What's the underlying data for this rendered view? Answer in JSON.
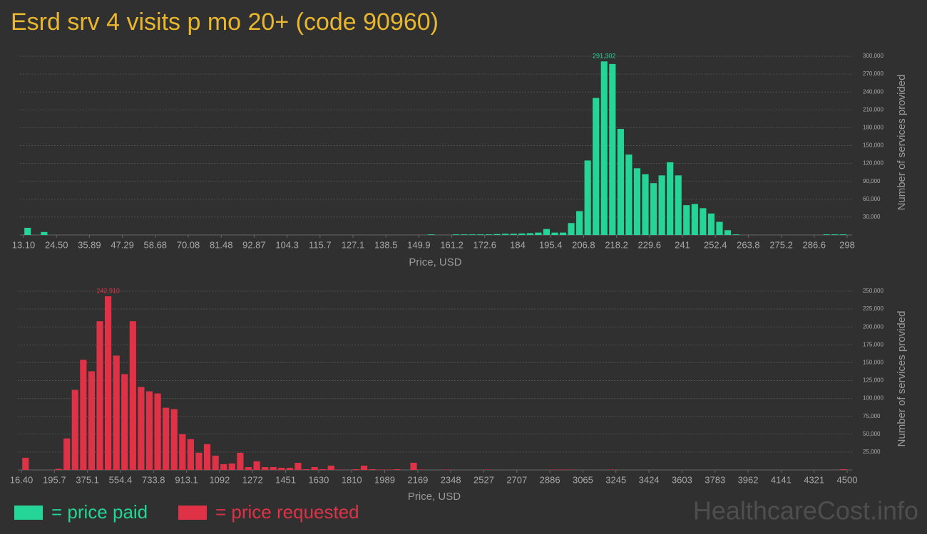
{
  "title": "Esrd srv 4 visits p mo 20+ (code 90960)",
  "watermark": "HealthcareCost.info",
  "chart_data": [
    {
      "type": "histogram",
      "x_label": "Price, USD",
      "y_label": "Number of services provided",
      "grid": true,
      "xlim": [
        13.1,
        298
      ],
      "ylim": [
        0,
        300000
      ],
      "xticks": [
        {
          "value": 13.1,
          "label": "13.10"
        },
        {
          "value": 24.5,
          "label": "24.50"
        },
        35.89,
        47.29,
        58.68,
        70.08,
        81.48,
        92.87,
        {
          "value": 104.27,
          "label": "104.3"
        },
        {
          "value": 115.66,
          "label": "115.7"
        },
        {
          "value": 127.06,
          "label": "127.1"
        },
        {
          "value": 138.46,
          "label": "138.5"
        },
        {
          "value": 149.85,
          "label": "149.9"
        },
        {
          "value": 161.25,
          "label": "161.2"
        },
        {
          "value": 172.64,
          "label": "172.6"
        },
        {
          "value": 184.04,
          "label": "184"
        },
        {
          "value": 195.44,
          "label": "195.4"
        },
        {
          "value": 206.83,
          "label": "206.8"
        },
        {
          "value": 218.23,
          "label": "218.2"
        },
        {
          "value": 229.62,
          "label": "229.6"
        },
        {
          "value": 241.02,
          "label": "241"
        },
        {
          "value": 252.42,
          "label": "252.4"
        },
        {
          "value": 263.81,
          "label": "263.8"
        },
        {
          "value": 275.21,
          "label": "275.2"
        },
        {
          "value": 286.6,
          "label": "286.6"
        },
        298
      ],
      "yticks": [
        {
          "value": 30000,
          "label": "30,000"
        },
        {
          "value": 60000,
          "label": "60,000"
        },
        {
          "value": 90000,
          "label": "90,000"
        },
        {
          "value": 120000,
          "label": "120,000"
        },
        {
          "value": 150000,
          "label": "150,000"
        },
        {
          "value": 180000,
          "label": "180,000"
        },
        {
          "value": 210000,
          "label": "210,000"
        },
        {
          "value": 240000,
          "label": "240,000"
        },
        {
          "value": 270000,
          "label": "270,000"
        },
        {
          "value": 300000,
          "label": "300,000"
        }
      ],
      "bins": [
        13.1,
        15.95,
        18.8,
        21.65,
        24.5,
        27.34,
        30.19,
        33.04,
        35.89,
        38.74,
        41.59,
        44.44,
        47.29,
        50.14,
        52.99,
        55.84,
        58.68,
        61.53,
        64.38,
        67.23,
        70.08,
        72.93,
        75.78,
        78.63,
        81.48,
        84.33,
        87.17,
        90.02,
        92.87,
        95.72,
        98.57,
        101.42,
        104.27,
        107.12,
        109.97,
        112.82,
        115.66,
        118.51,
        121.36,
        124.21,
        127.06,
        129.91,
        132.76,
        135.61,
        138.46,
        141.31,
        144.15,
        147.0,
        149.85,
        152.7,
        155.55,
        158.4,
        161.25,
        164.1,
        166.95,
        169.8,
        172.64,
        175.49,
        178.34,
        181.19,
        184.04,
        186.89,
        189.74,
        192.59,
        195.44,
        198.29,
        201.13,
        203.98,
        206.83,
        209.68,
        212.53,
        215.38,
        218.23,
        221.08,
        223.93,
        226.78,
        229.62,
        232.47,
        235.32,
        238.17,
        241.02,
        243.87,
        246.72,
        249.57,
        252.42,
        255.27,
        258.11,
        260.96,
        263.81,
        266.66,
        269.51,
        272.36,
        275.21,
        278.06,
        280.91,
        283.76,
        286.6,
        289.45,
        292.3,
        295.15,
        298
      ],
      "series": [
        {
          "name": "= price paid",
          "color": "#25d597",
          "values": [
            12000,
            0,
            5000,
            0,
            0,
            0,
            0,
            0,
            0,
            0,
            0,
            0,
            0,
            0,
            0,
            0,
            0,
            0,
            0,
            0,
            0,
            0,
            0,
            0,
            0,
            0,
            0,
            0,
            0,
            0,
            0,
            0,
            0,
            0,
            0,
            0,
            0,
            0,
            0,
            0,
            0,
            0,
            0,
            0,
            0,
            0,
            0,
            0,
            0,
            1000,
            0,
            0,
            1000,
            1000,
            1000,
            1000,
            1000,
            1500,
            2000,
            2000,
            2500,
            3000,
            4000,
            10000,
            4000,
            4000,
            20000,
            40000,
            125000,
            230000,
            291302,
            287000,
            178000,
            135000,
            112000,
            102000,
            87000,
            100000,
            122000,
            100000,
            50000,
            52000,
            45000,
            36000,
            22000,
            8000,
            1000,
            0,
            0,
            0,
            0,
            0,
            0,
            0,
            0,
            0,
            0,
            1000,
            1000,
            1000
          ],
          "value_labels": [
            null,
            null,
            null,
            null,
            null,
            null,
            null,
            null,
            null,
            null,
            null,
            null,
            null,
            null,
            null,
            null,
            null,
            null,
            null,
            null,
            null,
            null,
            null,
            null,
            null,
            null,
            null,
            null,
            null,
            null,
            null,
            null,
            null,
            null,
            null,
            null,
            null,
            null,
            null,
            null,
            null,
            null,
            null,
            null,
            null,
            null,
            null,
            null,
            null,
            null,
            null,
            null,
            null,
            null,
            null,
            null,
            null,
            null,
            null,
            null,
            null,
            null,
            null,
            null,
            null,
            null,
            null,
            null,
            null,
            null,
            "291,302",
            null,
            null,
            null,
            null,
            null,
            null,
            null,
            null,
            null,
            null,
            null,
            null,
            null,
            null,
            null,
            null,
            null,
            null,
            null,
            null,
            null,
            null,
            null,
            null,
            null,
            null,
            null,
            null,
            null
          ]
        }
      ]
    },
    {
      "type": "histogram",
      "x_label": "Price, USD",
      "y_label": "Number of services provided",
      "grid": true,
      "xlim": [
        16.4,
        4500
      ],
      "ylim": [
        0,
        250000
      ],
      "xticks": [
        {
          "value": 16.4,
          "label": "16.40"
        },
        {
          "value": 195.74,
          "label": "195.7"
        },
        {
          "value": 375.09,
          "label": "375.1"
        },
        {
          "value": 554.43,
          "label": "554.4"
        },
        {
          "value": 733.78,
          "label": "733.8"
        },
        {
          "value": 913.12,
          "label": "913.1"
        },
        {
          "value": 1092.46,
          "label": "1092"
        },
        {
          "value": 1271.81,
          "label": "1272"
        },
        {
          "value": 1451.15,
          "label": "1451"
        },
        {
          "value": 1630.5,
          "label": "1630"
        },
        {
          "value": 1809.84,
          "label": "1810"
        },
        {
          "value": 1989.18,
          "label": "1989"
        },
        {
          "value": 2168.53,
          "label": "2169"
        },
        {
          "value": 2347.87,
          "label": "2348"
        },
        {
          "value": 2527.22,
          "label": "2527"
        },
        {
          "value": 2706.56,
          "label": "2707"
        },
        {
          "value": 2885.9,
          "label": "2886"
        },
        {
          "value": 3065.25,
          "label": "3065"
        },
        {
          "value": 3244.59,
          "label": "3245"
        },
        {
          "value": 3423.94,
          "label": "3424"
        },
        {
          "value": 3603.28,
          "label": "3603"
        },
        {
          "value": 3782.62,
          "label": "3783"
        },
        {
          "value": 3961.97,
          "label": "3962"
        },
        {
          "value": 4141.31,
          "label": "4141"
        },
        {
          "value": 4320.66,
          "label": "4321"
        },
        4500
      ],
      "yticks": [
        {
          "value": 25000,
          "label": "25,000"
        },
        {
          "value": 50000,
          "label": "50,000"
        },
        {
          "value": 75000,
          "label": "75,000"
        },
        {
          "value": 100000,
          "label": "100,000"
        },
        {
          "value": 125000,
          "label": "125,000"
        },
        {
          "value": 150000,
          "label": "150,000"
        },
        {
          "value": 175000,
          "label": "175,000"
        },
        {
          "value": 200000,
          "label": "200,000"
        },
        {
          "value": 225000,
          "label": "225,000"
        },
        {
          "value": 250000,
          "label": "250,000"
        }
      ],
      "bins": [
        16.4,
        61.24,
        106.07,
        150.91,
        195.74,
        240.58,
        285.42,
        330.25,
        375.09,
        419.92,
        464.76,
        509.6,
        554.43,
        599.27,
        644.1,
        688.94,
        733.78,
        778.61,
        823.45,
        868.28,
        913.12,
        957.96,
        1002.79,
        1047.63,
        1092.46,
        1137.3,
        1182.14,
        1226.97,
        1271.81,
        1316.64,
        1361.48,
        1406.32,
        1451.15,
        1495.99,
        1540.82,
        1585.66,
        1630.5,
        1675.33,
        1720.17,
        1765,
        1809.84,
        1854.68,
        1899.51,
        1944.35,
        1989.18,
        2034.02,
        2078.86,
        2123.69,
        2168.53,
        2213.36,
        2258.2,
        2303.04,
        2347.87,
        2392.71,
        2437.54,
        2482.38,
        2527.22,
        2572.05,
        2616.89,
        2661.72,
        2706.56,
        2751.4,
        2796.23,
        2841.07,
        2885.9,
        2930.74,
        2975.58,
        3020.41,
        3065.25,
        3110.08,
        3154.92,
        3199.76,
        3244.59,
        3289.43,
        3334.26,
        3379.1,
        3423.94,
        3468.77,
        3513.61,
        3558.44,
        3603.28,
        3648.12,
        3692.95,
        3737.79,
        3782.62,
        3827.46,
        3872.3,
        3917.13,
        3961.97,
        4006.8,
        4051.64,
        4096.48,
        4141.31,
        4186.15,
        4230.98,
        4275.82,
        4320.66,
        4365.49,
        4410.33,
        4455.16,
        4500
      ],
      "series": [
        {
          "name": "= price requested",
          "color": "#e03246",
          "values": [
            17000,
            0,
            0,
            0,
            1500,
            44000,
            112000,
            154000,
            138000,
            208000,
            242910,
            160000,
            134000,
            208000,
            116000,
            110000,
            107000,
            87000,
            85000,
            50000,
            43000,
            24000,
            36000,
            20000,
            8000,
            9000,
            24000,
            4000,
            12000,
            4000,
            4000,
            3000,
            3000,
            10000,
            1000,
            4000,
            1000,
            6000,
            500,
            0,
            1000,
            6000,
            1000,
            500,
            500,
            1000,
            0,
            10000,
            500,
            0,
            0,
            500,
            0,
            0,
            0,
            0,
            500,
            0,
            0,
            0,
            0,
            0,
            0,
            0,
            500,
            500,
            500,
            0,
            0,
            0,
            0,
            500,
            0,
            0,
            0,
            0,
            0,
            0,
            0,
            0,
            0,
            0,
            0,
            0,
            0,
            0,
            0,
            0,
            0,
            0,
            0,
            0,
            0,
            0,
            0,
            0,
            0,
            0,
            0,
            1000
          ],
          "value_labels": [
            null,
            null,
            null,
            null,
            null,
            null,
            null,
            null,
            null,
            null,
            "242,910",
            null,
            null,
            null,
            null,
            null,
            null,
            null,
            null,
            null,
            null,
            null,
            null,
            null,
            null,
            null,
            null,
            null,
            null,
            null,
            null,
            null,
            null,
            null,
            null,
            null,
            null,
            null,
            null,
            null,
            null,
            null,
            null,
            null,
            null,
            null,
            null,
            null,
            null,
            null,
            null,
            null,
            null,
            null,
            null,
            null,
            null,
            null,
            null,
            null,
            null,
            null,
            null,
            null,
            null,
            null,
            null,
            null,
            null,
            null,
            null,
            null,
            null,
            null,
            null,
            null,
            null,
            null,
            null,
            null,
            null,
            null,
            null,
            null,
            null,
            null,
            null,
            null,
            null,
            null,
            null,
            null,
            null,
            null,
            null,
            null,
            null,
            null,
            null,
            null
          ]
        }
      ]
    }
  ]
}
